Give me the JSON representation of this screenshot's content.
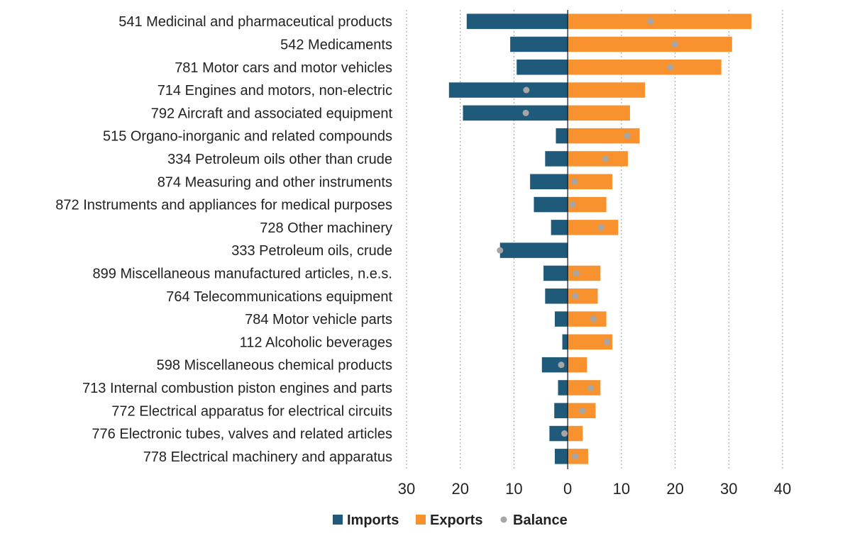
{
  "chart_data": {
    "type": "bar",
    "orientation": "horizontal",
    "categories": [
      "541 Medicinal and pharmaceutical products",
      "542 Medicaments",
      "781 Motor cars and motor vehicles",
      "714 Engines and motors, non-electric",
      "792 Aircraft and associated equipment",
      "515 Organo-inorganic and related compounds",
      "334 Petroleum oils other than crude",
      "874 Measuring and other instruments",
      "872 Instruments and appliances for medical purposes",
      "728 Other machinery",
      "333 Petroleum oils, crude",
      "899 Miscellaneous manufactured articles, n.e.s.",
      "764 Telecommunications equipment",
      "784 Motor vehicle parts",
      "112 Alcoholic beverages",
      "598 Miscellaneous chemical products",
      "713 Internal combustion piston engines and parts",
      "772 Electrical apparatus for electrical circuits",
      "776 Electronic tubes, valves and related articles",
      "778 Electrical machinery and apparatus"
    ],
    "series": [
      {
        "name": "Imports",
        "color": "#1f5a7a",
        "values": [
          -18.8,
          -10.7,
          -9.5,
          -22.1,
          -19.5,
          -2.2,
          -4.2,
          -7,
          -6.3,
          -3.1,
          -12.6,
          -4.5,
          -4.2,
          -2.4,
          -1,
          -4.8,
          -1.8,
          -2.5,
          -3.4,
          -2.4
        ]
      },
      {
        "name": "Exports",
        "color": "#f7922f",
        "values": [
          34.2,
          30.6,
          28.6,
          14.4,
          11.6,
          13.4,
          11.2,
          8.3,
          7.2,
          9.4,
          0,
          6.1,
          5.6,
          7.2,
          8.3,
          3.6,
          6.1,
          5.2,
          2.8,
          3.8
        ]
      },
      {
        "name": "Balance",
        "color": "#a6a6a6",
        "marker": "dot",
        "values": [
          15.4,
          19.9,
          19.1,
          -7.7,
          -7.8,
          11.1,
          7,
          1.3,
          0.9,
          6.2,
          -12.6,
          1.6,
          1.4,
          4.8,
          7.3,
          -1.2,
          4.3,
          2.7,
          -0.6,
          1.4
        ]
      }
    ],
    "xlim": [
      -30,
      40
    ],
    "xticks": [
      -30,
      -20,
      -10,
      0,
      10,
      20,
      30,
      40
    ],
    "xtick_labels": [
      "30",
      "20",
      "10",
      "0",
      "10",
      "20",
      "30",
      "40"
    ],
    "grid": "vertical dotted",
    "legend_position": "bottom-center",
    "title": "",
    "xlabel": "",
    "ylabel": ""
  }
}
